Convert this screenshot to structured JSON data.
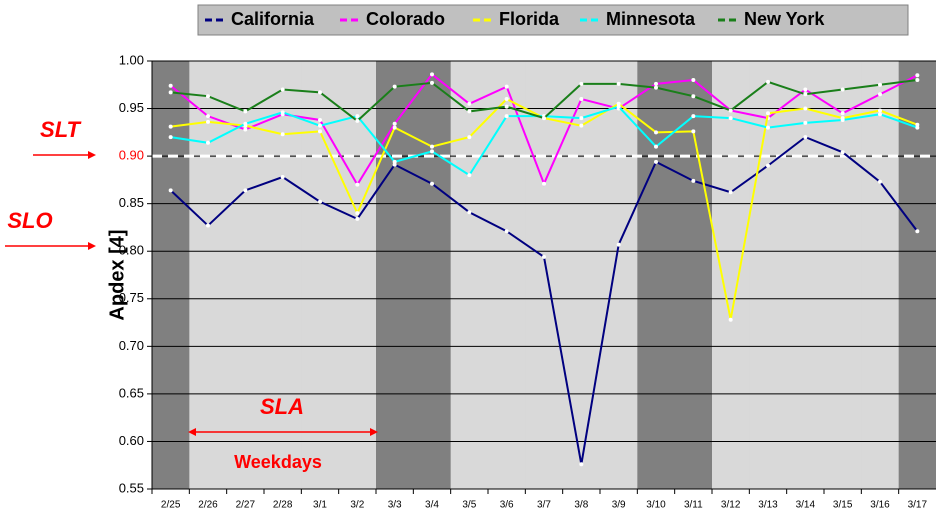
{
  "chart_data": {
    "type": "line",
    "ylabel": "Apdex [4]",
    "categories": [
      "2/25",
      "2/26",
      "2/27",
      "2/28",
      "3/1",
      "3/2",
      "3/3",
      "3/4",
      "3/5",
      "3/6",
      "3/7",
      "3/8",
      "3/9",
      "3/10",
      "3/11",
      "3/12",
      "3/13",
      "3/14",
      "3/15",
      "3/16",
      "3/17"
    ],
    "series": [
      {
        "name": "California",
        "color": "#000080",
        "values": [
          0.864,
          0.827,
          0.864,
          0.878,
          0.852,
          0.834,
          0.891,
          0.871,
          0.841,
          0.821,
          0.794,
          0.576,
          0.807,
          0.894,
          0.874,
          0.862,
          0.89,
          0.92,
          0.904,
          0.873,
          0.821
        ]
      },
      {
        "name": "Colorado",
        "color": "#ff00ff",
        "values": [
          0.974,
          0.942,
          0.928,
          0.944,
          0.938,
          0.87,
          0.934,
          0.986,
          0.955,
          0.973,
          0.871,
          0.96,
          0.95,
          0.976,
          0.98,
          0.948,
          0.94,
          0.97,
          0.945,
          0.965,
          0.985
        ]
      },
      {
        "name": "Florida",
        "color": "#ffff00",
        "values": [
          0.931,
          0.936,
          0.932,
          0.923,
          0.926,
          0.84,
          0.93,
          0.91,
          0.92,
          0.96,
          0.94,
          0.932,
          0.955,
          0.925,
          0.926,
          0.728,
          0.945,
          0.95,
          0.94,
          0.948,
          0.933
        ]
      },
      {
        "name": "Minnesota",
        "color": "#00ffff",
        "values": [
          0.92,
          0.914,
          0.934,
          0.946,
          0.932,
          0.942,
          0.894,
          0.905,
          0.88,
          0.942,
          0.942,
          0.94,
          0.952,
          0.91,
          0.942,
          0.94,
          0.93,
          0.935,
          0.938,
          0.944,
          0.93
        ]
      },
      {
        "name": "New York",
        "color": "#1a7f1a",
        "values": [
          0.967,
          0.963,
          0.947,
          0.97,
          0.967,
          0.937,
          0.973,
          0.977,
          0.947,
          0.952,
          0.94,
          0.976,
          0.976,
          0.972,
          0.963,
          0.948,
          0.978,
          0.965,
          0.97,
          0.975,
          0.98
        ]
      }
    ],
    "ylim": [
      0.55,
      1
    ],
    "yticks": [
      0.55,
      {
        "value": 0.6,
        "label": "0.60"
      },
      0.65,
      {
        "value": 0.7,
        "label": "0.70"
      },
      0.75,
      {
        "value": 0.8,
        "label": "0.80"
      },
      0.85,
      {
        "value": 0.9,
        "label": "0.90"
      },
      0.95,
      {
        "value": 1,
        "label": "1.00"
      }
    ],
    "grid": true,
    "reference_line": 0.9,
    "annotations": {
      "slt": "SLT",
      "slo": "SLO",
      "sla": "SLA",
      "weekdays": "Weekdays"
    }
  }
}
